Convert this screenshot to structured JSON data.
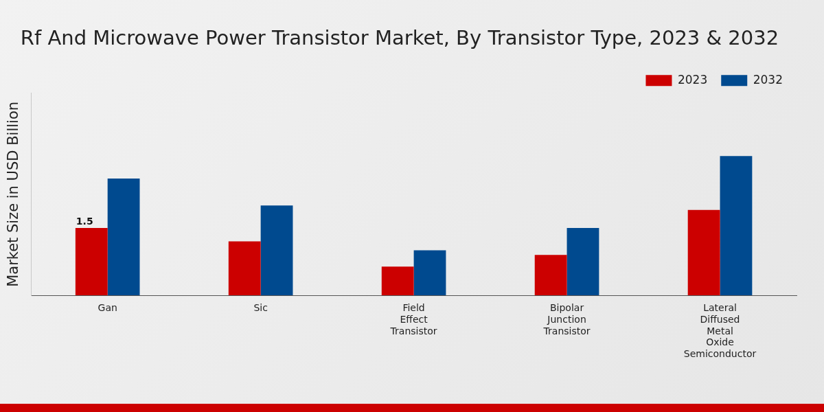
{
  "chart_data": {
    "type": "bar",
    "title": "Rf And Microwave Power Transistor Market, By Transistor Type, 2023 & 2032",
    "y_label": "Market Size in USD Billion",
    "categories": [
      "Gan",
      "Sic",
      "Field Effect Transistor",
      "Bipolar Junction Transistor",
      "Lateral Diffused Metal Oxide Semiconductor"
    ],
    "series": [
      {
        "name": "2023",
        "color": "#cc0000",
        "values": [
          1.5,
          1.2,
          0.64,
          0.9,
          1.9
        ],
        "value_labels": [
          "1.5",
          null,
          null,
          null,
          null
        ]
      },
      {
        "name": "2032",
        "color": "#004a8f",
        "values": [
          2.6,
          2.0,
          1.0,
          1.5,
          3.1
        ],
        "value_labels": [
          null,
          null,
          null,
          null,
          null
        ]
      }
    ],
    "ylim": [
      0,
      4.5
    ],
    "grid": false,
    "legend": "top-right",
    "data_labels": true,
    "tick_labels": "x"
  }
}
